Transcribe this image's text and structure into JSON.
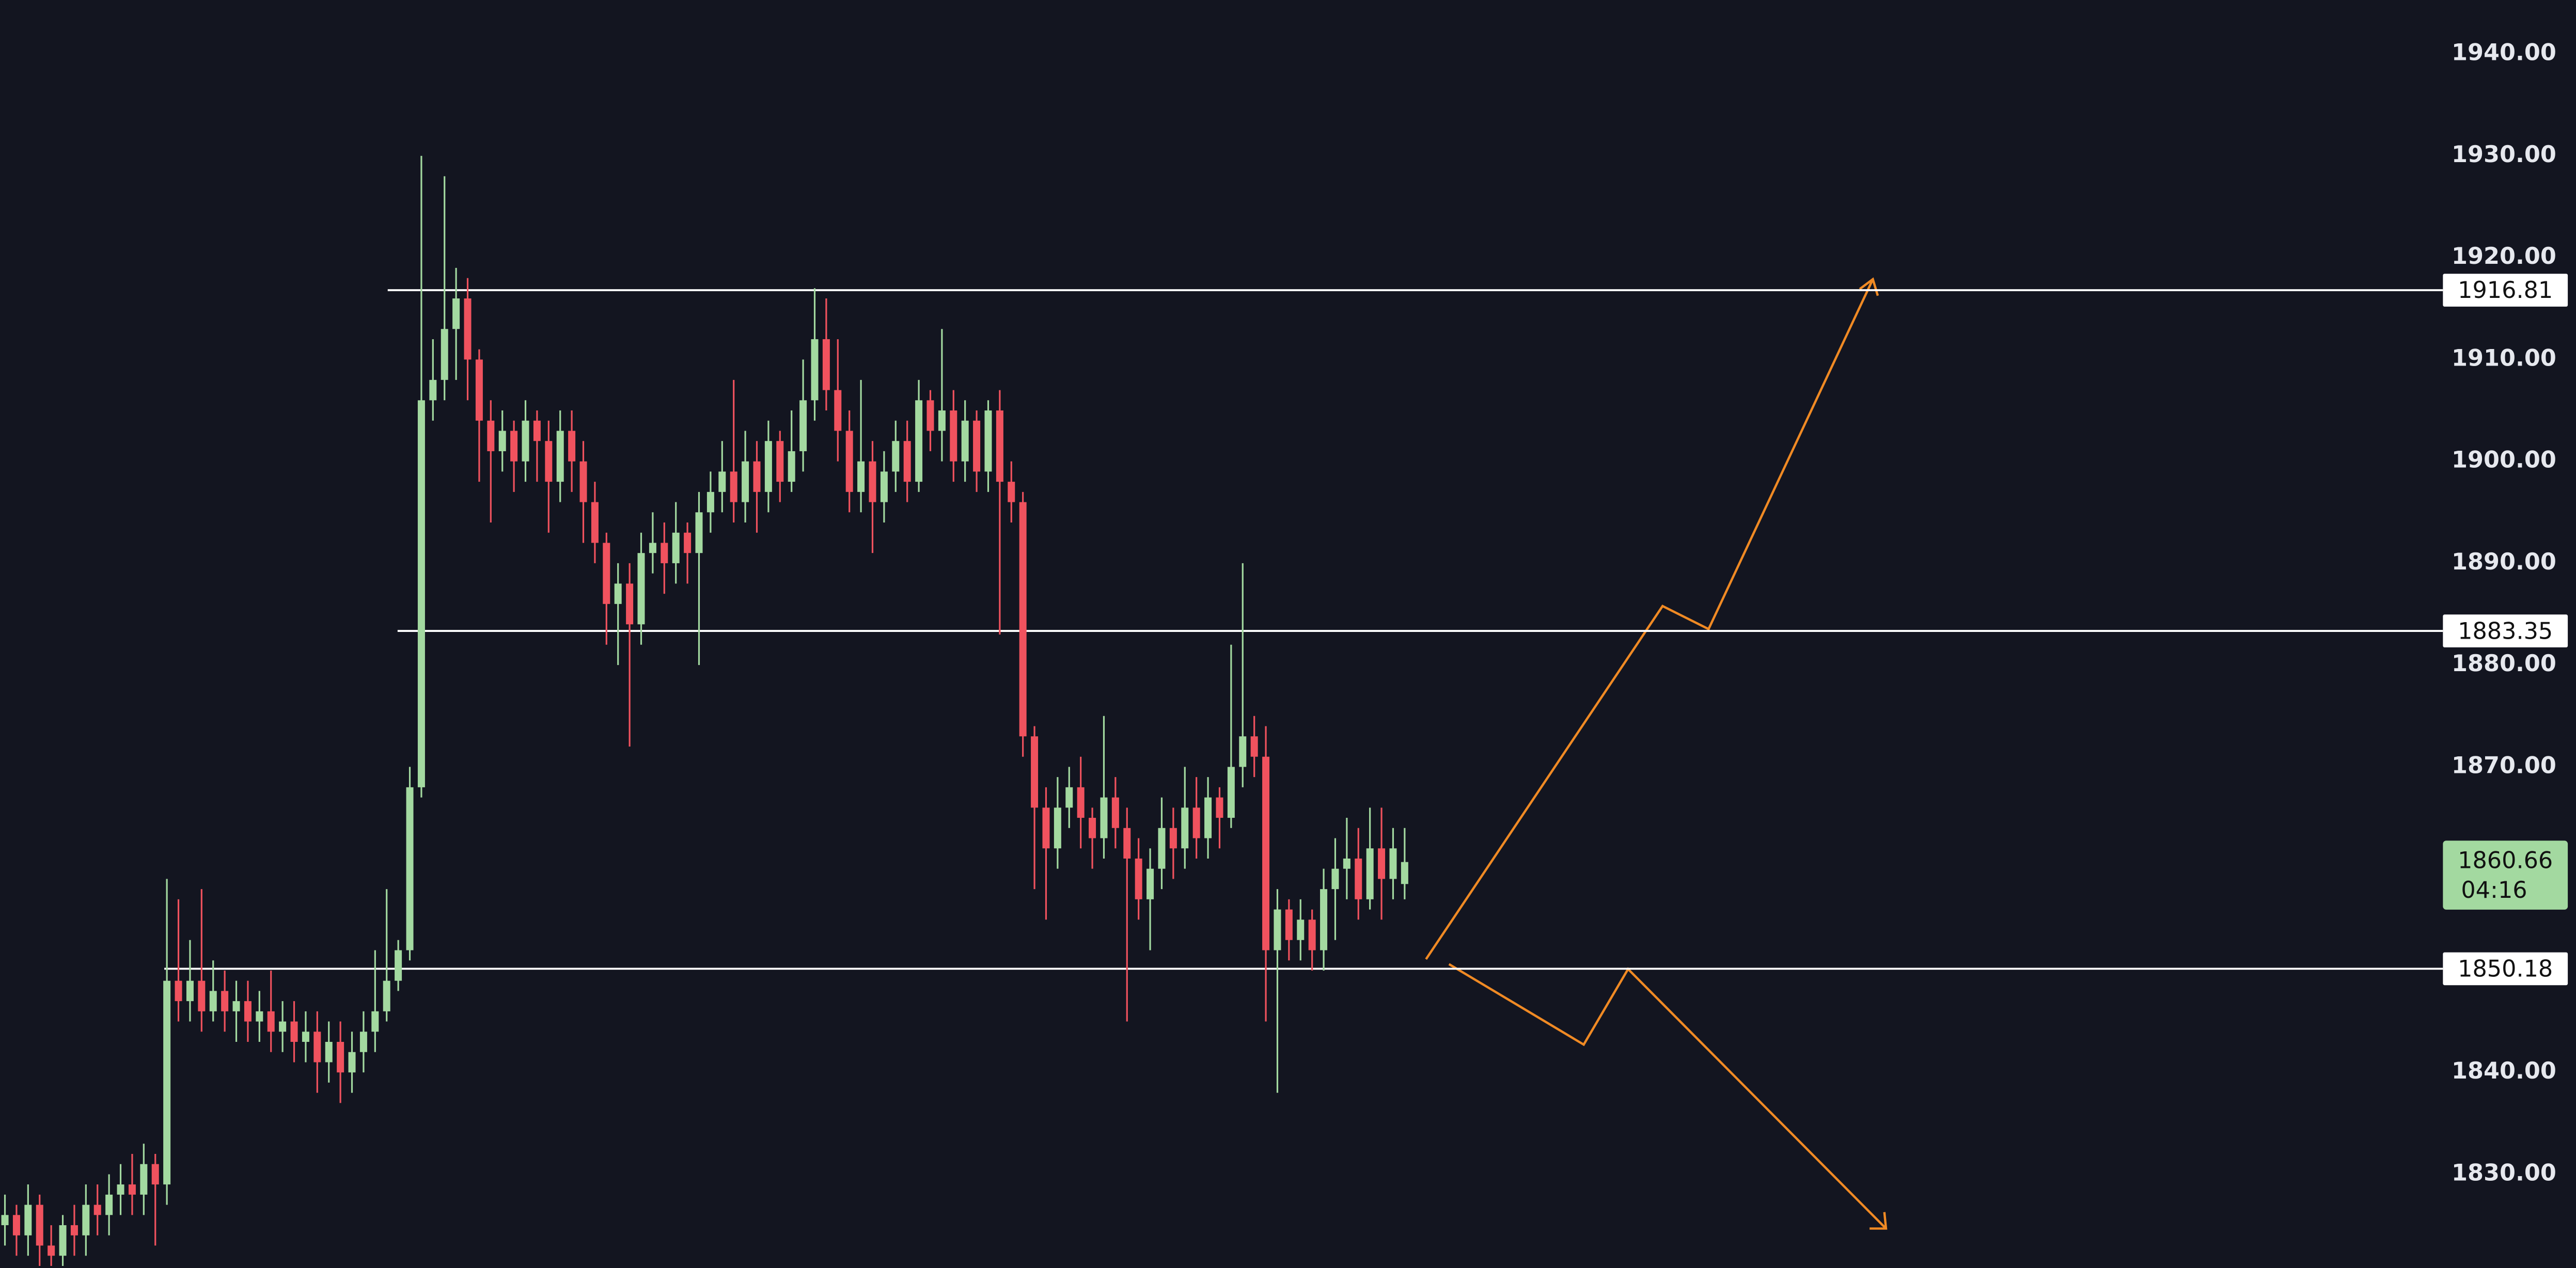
{
  "chart_data": {
    "type": "candlestick",
    "open": [
      1825,
      1826,
      1824,
      1827,
      1823,
      1822,
      1825,
      1824,
      1827,
      1826,
      1828,
      1829,
      1828,
      1831,
      1829,
      1849,
      1847,
      1849,
      1846,
      1848,
      1846,
      1847,
      1845,
      1846,
      1844,
      1845,
      1843,
      1844,
      1841,
      1843,
      1840,
      1842,
      1844,
      1846,
      1849,
      1852,
      1868,
      1906,
      1908,
      1913,
      1916,
      1910,
      1904,
      1901,
      1903,
      1900,
      1904,
      1902,
      1898,
      1903,
      1900,
      1896,
      1892,
      1886,
      1888,
      1884,
      1891,
      1892,
      1890,
      1893,
      1891,
      1895,
      1897,
      1899,
      1896,
      1900,
      1897,
      1902,
      1898,
      1901,
      1906,
      1912,
      1907,
      1903,
      1897,
      1900,
      1896,
      1899,
      1902,
      1898,
      1906,
      1903,
      1905,
      1900,
      1904,
      1899,
      1905,
      1898,
      1896,
      1873,
      1866,
      1862,
      1866,
      1868,
      1865,
      1863,
      1867,
      1864,
      1861,
      1857,
      1860,
      1864,
      1862,
      1866,
      1863,
      1867,
      1865,
      1870,
      1873,
      1871,
      1852,
      1856,
      1853,
      1855,
      1852,
      1858,
      1860,
      1861,
      1857,
      1862,
      1859,
      1858.5
    ],
    "high": [
      1828,
      1827,
      1829,
      1828,
      1825,
      1826,
      1827,
      1829,
      1829,
      1830,
      1831,
      1832,
      1833,
      1832,
      1859,
      1857,
      1853,
      1858,
      1851,
      1850,
      1849,
      1849,
      1848,
      1850,
      1847,
      1847,
      1846,
      1846,
      1845,
      1845,
      1844,
      1846,
      1852,
      1858,
      1853,
      1870,
      1930,
      1912,
      1928,
      1919,
      1918,
      1911,
      1906,
      1905,
      1904,
      1906,
      1905,
      1904,
      1905,
      1905,
      1902,
      1898,
      1893,
      1890,
      1890,
      1893,
      1895,
      1894,
      1896,
      1894,
      1897,
      1899,
      1902,
      1908,
      1903,
      1902,
      1904,
      1903,
      1905,
      1910,
      1917,
      1916,
      1912,
      1905,
      1908,
      1902,
      1901,
      1904,
      1904,
      1908,
      1907,
      1913,
      1907,
      1906,
      1905,
      1906,
      1907,
      1900,
      1897,
      1874,
      1868,
      1869,
      1870,
      1871,
      1866,
      1875,
      1869,
      1866,
      1863,
      1862,
      1867,
      1866,
      1870,
      1869,
      1869,
      1868,
      1882,
      1890,
      1875,
      1874,
      1858,
      1857,
      1857,
      1856,
      1860,
      1863,
      1865,
      1864,
      1866,
      1866,
      1864,
      1864
    ],
    "low": [
      1823,
      1822,
      1822,
      1821,
      1821,
      1821,
      1822,
      1822,
      1824,
      1824,
      1826,
      1826,
      1826,
      1823,
      1827,
      1845,
      1845,
      1844,
      1845,
      1844,
      1843,
      1843,
      1843,
      1842,
      1842,
      1841,
      1841,
      1838,
      1839,
      1837,
      1838,
      1840,
      1842,
      1845,
      1848,
      1851,
      1867,
      1904,
      1906,
      1908,
      1906,
      1898,
      1894,
      1899,
      1897,
      1898,
      1898,
      1893,
      1896,
      1897,
      1892,
      1890,
      1882,
      1880,
      1872,
      1882,
      1889,
      1887,
      1888,
      1888,
      1880,
      1893,
      1895,
      1894,
      1894,
      1893,
      1895,
      1896,
      1897,
      1899,
      1904,
      1905,
      1900,
      1895,
      1895,
      1891,
      1894,
      1897,
      1896,
      1897,
      1901,
      1900,
      1898,
      1898,
      1897,
      1897,
      1883,
      1894,
      1871,
      1858,
      1855,
      1860,
      1864,
      1862,
      1860,
      1861,
      1862,
      1845,
      1855,
      1852,
      1858,
      1859,
      1860,
      1861,
      1861,
      1862,
      1864,
      1868,
      1869,
      1845,
      1838,
      1851,
      1851,
      1850,
      1850,
      1853,
      1857,
      1855,
      1856,
      1855,
      1857,
      1857
    ],
    "close": [
      1826,
      1824,
      1827,
      1823,
      1822,
      1825,
      1824,
      1827,
      1826,
      1828,
      1829,
      1828,
      1831,
      1829,
      1849,
      1847,
      1849,
      1846,
      1848,
      1846,
      1847,
      1845,
      1846,
      1844,
      1845,
      1843,
      1844,
      1841,
      1843,
      1840,
      1842,
      1844,
      1846,
      1849,
      1852,
      1868,
      1906,
      1908,
      1913,
      1916,
      1910,
      1904,
      1901,
      1903,
      1900,
      1904,
      1902,
      1898,
      1903,
      1900,
      1896,
      1892,
      1886,
      1888,
      1884,
      1891,
      1892,
      1890,
      1893,
      1891,
      1895,
      1897,
      1899,
      1896,
      1900,
      1897,
      1902,
      1898,
      1901,
      1906,
      1912,
      1907,
      1903,
      1897,
      1900,
      1896,
      1899,
      1902,
      1898,
      1906,
      1903,
      1905,
      1900,
      1904,
      1899,
      1905,
      1898,
      1896,
      1873,
      1866,
      1862,
      1866,
      1868,
      1865,
      1863,
      1867,
      1864,
      1861,
      1857,
      1860,
      1864,
      1862,
      1866,
      1863,
      1867,
      1865,
      1870,
      1873,
      1871,
      1852,
      1856,
      1853,
      1855,
      1852,
      1858,
      1860,
      1861,
      1857,
      1862,
      1859,
      1862,
      1860.66
    ],
    "up_color": "#a3d9a0",
    "down_color": "#f0525e",
    "levels": [
      1916.81,
      1883.35,
      1850.18
    ],
    "countdown": "04:16",
    "ylim": [
      1820.8,
      1945.3
    ],
    "yticks": [
      {
        "value": 1830,
        "label": "1830.00"
      },
      {
        "value": 1840,
        "label": "1840.00"
      },
      {
        "value": 1850,
        "label": "1850.00"
      },
      {
        "value": 1860,
        "label": "1860.00"
      },
      {
        "value": 1870,
        "label": "1870.00"
      },
      {
        "value": 1880,
        "label": "1880.00"
      },
      {
        "value": 1890,
        "label": "1890.00"
      },
      {
        "value": 1900,
        "label": "1900.00"
      },
      {
        "value": 1910,
        "label": "1910.00"
      },
      {
        "value": 1920,
        "label": "1920.00"
      },
      {
        "value": 1930,
        "label": "1930.00"
      },
      {
        "value": 1940,
        "label": "1940.00"
      }
    ],
    "grid": false
  }
}
